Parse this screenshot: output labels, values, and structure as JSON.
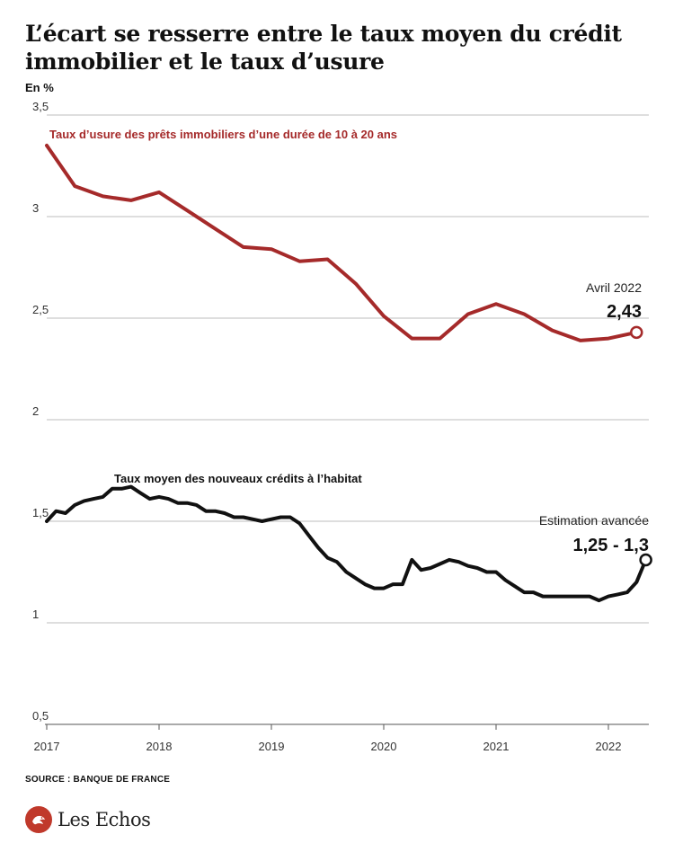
{
  "header": {
    "title": "L’écart se resserre entre le taux moyen du crédit immobilier et le taux d’usure",
    "unit": "En %"
  },
  "footer": {
    "source": "SOURCE : BANQUE DE FRANCE",
    "logo_text": "Les Echos",
    "logo_icon": "les-echos-logo-icon"
  },
  "colors": {
    "usure": "#a52a2a",
    "moyen": "#111111",
    "grid": "#bdbdbd",
    "axis": "#555555"
  },
  "chart_data": {
    "type": "line",
    "title": "L’écart se resserre entre le taux moyen du crédit immobilier et le taux d’usure",
    "ylabel": "En %",
    "ylim": [
      0.5,
      3.5
    ],
    "yticks": [
      0.5,
      1,
      1.5,
      2,
      2.5,
      3,
      3.5
    ],
    "ytick_labels": [
      "0,5",
      "1",
      "1,5",
      "2",
      "2,5",
      "3",
      "3,5"
    ],
    "xlim": [
      2017.0,
      2022.36
    ],
    "xticks": [
      2017,
      2018,
      2019,
      2020,
      2021,
      2022
    ],
    "xtick_labels": [
      "2017",
      "2018",
      "2019",
      "2020",
      "2021",
      "2022"
    ],
    "grid": true,
    "series": [
      {
        "name": "Taux d’usure des prêts immobiliers d’une durée de 10 à 20 ans",
        "color_key": "usure",
        "annotation": {
          "label": "Avril 2022",
          "value_label": "2,43"
        },
        "x": [
          2017.0,
          2017.25,
          2017.5,
          2017.75,
          2018.0,
          2018.25,
          2018.5,
          2018.75,
          2019.0,
          2019.25,
          2019.5,
          2019.75,
          2020.0,
          2020.25,
          2020.5,
          2020.75,
          2021.0,
          2021.25,
          2021.5,
          2021.75,
          2022.0,
          2022.25
        ],
        "y": [
          3.35,
          3.15,
          3.1,
          3.08,
          3.12,
          3.03,
          2.94,
          2.85,
          2.84,
          2.78,
          2.79,
          2.67,
          2.51,
          2.4,
          2.4,
          2.52,
          2.57,
          2.52,
          2.44,
          2.39,
          2.4,
          2.43
        ]
      },
      {
        "name": "Taux moyen des nouveaux crédits à l’habitat",
        "color_key": "moyen",
        "annotation": {
          "label": "Estimation avancée",
          "value_label": "1,25 - 1,3"
        },
        "x": [
          2017.0,
          2017.083,
          2017.167,
          2017.25,
          2017.333,
          2017.417,
          2017.5,
          2017.583,
          2017.667,
          2017.75,
          2017.833,
          2017.917,
          2018.0,
          2018.083,
          2018.167,
          2018.25,
          2018.333,
          2018.417,
          2018.5,
          2018.583,
          2018.667,
          2018.75,
          2018.833,
          2018.917,
          2019.0,
          2019.083,
          2019.167,
          2019.25,
          2019.333,
          2019.417,
          2019.5,
          2019.583,
          2019.667,
          2019.75,
          2019.833,
          2019.917,
          2020.0,
          2020.083,
          2020.167,
          2020.25,
          2020.333,
          2020.417,
          2020.5,
          2020.583,
          2020.667,
          2020.75,
          2020.833,
          2020.917,
          2021.0,
          2021.083,
          2021.167,
          2021.25,
          2021.333,
          2021.417,
          2021.5,
          2021.583,
          2021.667,
          2021.75,
          2021.833,
          2021.917,
          2022.0,
          2022.083,
          2022.167,
          2022.25,
          2022.333
        ],
        "y": [
          1.5,
          1.55,
          1.54,
          1.58,
          1.6,
          1.61,
          1.62,
          1.66,
          1.66,
          1.67,
          1.64,
          1.61,
          1.62,
          1.61,
          1.59,
          1.59,
          1.58,
          1.55,
          1.55,
          1.54,
          1.52,
          1.52,
          1.51,
          1.5,
          1.51,
          1.52,
          1.52,
          1.49,
          1.43,
          1.37,
          1.32,
          1.3,
          1.25,
          1.22,
          1.19,
          1.17,
          1.17,
          1.19,
          1.19,
          1.31,
          1.26,
          1.27,
          1.29,
          1.31,
          1.3,
          1.28,
          1.27,
          1.25,
          1.25,
          1.21,
          1.18,
          1.15,
          1.15,
          1.13,
          1.13,
          1.13,
          1.13,
          1.13,
          1.13,
          1.11,
          1.13,
          1.14,
          1.15,
          1.2,
          1.31
        ]
      }
    ]
  }
}
